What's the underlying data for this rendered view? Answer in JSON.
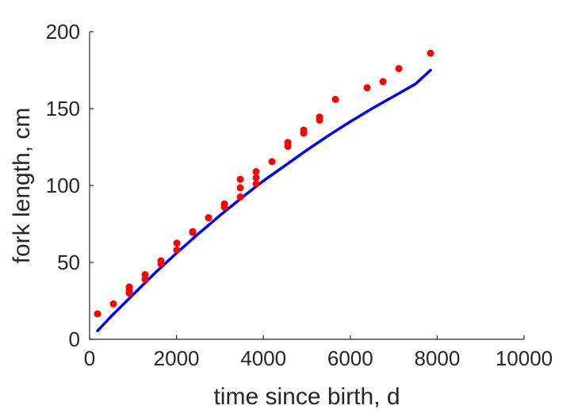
{
  "chart_data": {
    "type": "scatter",
    "title": "",
    "xlabel": "time since birth, d",
    "ylabel": "fork length, cm",
    "xlim": [
      0,
      10000
    ],
    "ylim": [
      0,
      200
    ],
    "xticks": [
      0,
      2000,
      4000,
      6000,
      8000,
      10000
    ],
    "yticks": [
      0,
      50,
      100,
      150,
      200
    ],
    "xtick_labels": [
      "0",
      "2000",
      "4000",
      "6000",
      "8000",
      "10000"
    ],
    "ytick_labels": [
      "0",
      "50",
      "100",
      "150",
      "200"
    ],
    "grid": false,
    "legend": "none",
    "series": [
      {
        "kind": "points",
        "color": "#ff0000",
        "points": [
          [
            183,
            16.5
          ],
          [
            548,
            23
          ],
          [
            913,
            34
          ],
          [
            913,
            32
          ],
          [
            913,
            30
          ],
          [
            1278,
            42
          ],
          [
            1278,
            39
          ],
          [
            1643,
            51
          ],
          [
            1643,
            49
          ],
          [
            2008,
            62.5
          ],
          [
            2008,
            58
          ],
          [
            2373,
            70
          ],
          [
            2373,
            69.5
          ],
          [
            2738,
            79
          ],
          [
            3103,
            88
          ],
          [
            3103,
            86
          ],
          [
            3468,
            104
          ],
          [
            3468,
            98.5
          ],
          [
            3468,
            92.5
          ],
          [
            3833,
            109
          ],
          [
            3833,
            105
          ],
          [
            3833,
            101
          ],
          [
            4198,
            115.5
          ],
          [
            4563,
            128
          ],
          [
            4563,
            125.5
          ],
          [
            4928,
            136
          ],
          [
            4928,
            134
          ],
          [
            5293,
            144.5
          ],
          [
            5293,
            142.5
          ],
          [
            5658,
            156
          ],
          [
            6388,
            163.5
          ],
          [
            6753,
            167.5
          ],
          [
            7118,
            176
          ],
          [
            7848,
            186
          ]
        ]
      },
      {
        "kind": "curve",
        "color": "#0000ff",
        "x": [
          183,
          500,
          1000,
          1500,
          2000,
          2500,
          3000,
          3500,
          4000,
          4500,
          5000,
          5500,
          6000,
          6500,
          7000,
          7500,
          7848
        ],
        "y": [
          5.5,
          15,
          29,
          43,
          56,
          68.5,
          80.5,
          92,
          103,
          113,
          123,
          132.5,
          141.5,
          150,
          158,
          166,
          175
        ]
      }
    ]
  }
}
